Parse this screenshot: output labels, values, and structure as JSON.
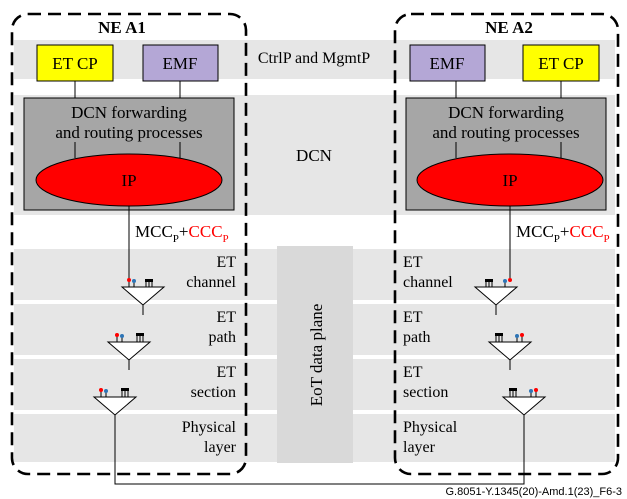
{
  "ne_left": {
    "title": "NE A1",
    "et_cp": "ET CP",
    "emf": "EMF",
    "dcn_forwarding_line1": "DCN forwarding",
    "dcn_forwarding_line2": "and routing processes",
    "ip": "IP",
    "layers": {
      "channel": [
        "ET",
        "channel"
      ],
      "path": [
        "ET",
        "path"
      ],
      "section": [
        "ET",
        "section"
      ],
      "physical": [
        "Physical",
        "layer"
      ]
    }
  },
  "ne_right": {
    "title": "NE A2",
    "et_cp": "ET CP",
    "emf": "EMF",
    "dcn_forwarding_line1": "DCN forwarding",
    "dcn_forwarding_line2": "and routing processes",
    "ip": "IP",
    "layers": {
      "channel": [
        "ET",
        "channel"
      ],
      "path": [
        "ET",
        "path"
      ],
      "section": [
        "ET",
        "section"
      ],
      "physical": [
        "Physical",
        "layer"
      ]
    }
  },
  "bands": {
    "ctrl_mgmt": "CtrlP and MgmtP",
    "dcn": "DCN",
    "eot_data_plane": "EoT data plane"
  },
  "mcc_label": {
    "mcc": "MCC",
    "mcc_sub": "P",
    "plus": "+",
    "ccc": "CCC",
    "ccc_sub": "P"
  },
  "footer": "G.8051-Y.1345(20)-Amd.1(23)_F6-3",
  "colors": {
    "et_cp_fill": "#ffff00",
    "emf_fill": "#b4a7d6",
    "dcn_box_fill": "#a6a6a6",
    "ip_fill": "#ff0000",
    "band_fill": "#e6e6e6",
    "ccc_text": "#ff0000",
    "pin_red": "#ff0000",
    "pin_blue": "#2e75b6"
  }
}
